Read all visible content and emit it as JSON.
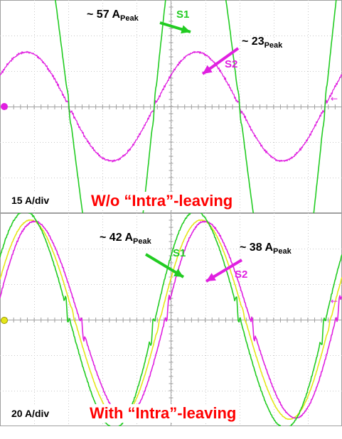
{
  "colors": {
    "s1": "#22cc22",
    "s2": "#e020e0",
    "yellow": "#e6e61a",
    "grid": "#c8c8c8",
    "axis": "#a0a0a0",
    "caption": "#ff0000",
    "marker_top": "#e020e0",
    "marker_bottom": "#e6e61a"
  },
  "top_panel": {
    "scale_label": "15 A/div",
    "caption": "W/o “Intra”-leaving",
    "s1_annotation": {
      "prefix": "~ 57 A",
      "sub": "Peak"
    },
    "s2_annotation": {
      "prefix": "~ 23",
      "sub": "Peak"
    },
    "s1_label": "S1",
    "s2_label": "S2"
  },
  "bottom_panel": {
    "scale_label": "20 A/div",
    "caption": "With “Intra”-leaving",
    "s1_annotation": {
      "prefix": "~ 42 A",
      "sub": "Peak"
    },
    "s2_annotation": {
      "prefix": "~ 38 A",
      "sub": "Peak"
    },
    "s1_label": "S1",
    "s2_label": "S2"
  },
  "chart_data": [
    {
      "type": "line",
      "title": "W/o “Intra”-leaving",
      "ylabel": "15 A/div",
      "x_divisions": 10,
      "y_divisions": 6,
      "grid": true,
      "waveform_periods_shown": 2.1,
      "series": [
        {
          "name": "S1",
          "peak_A": 57,
          "color": "#22cc22"
        },
        {
          "name": "S2",
          "peak_A": 23,
          "color": "#e020e0"
        }
      ]
    },
    {
      "type": "line",
      "title": "With “Intra”-leaving",
      "ylabel": "20 A/div",
      "x_divisions": 10,
      "y_divisions": 6,
      "grid": true,
      "waveform_periods_shown": 2.1,
      "series": [
        {
          "name": "S1",
          "peak_A": 42,
          "color": "#22cc22"
        },
        {
          "name": "S2",
          "peak_A": 38,
          "color": "#e020e0"
        }
      ]
    }
  ]
}
